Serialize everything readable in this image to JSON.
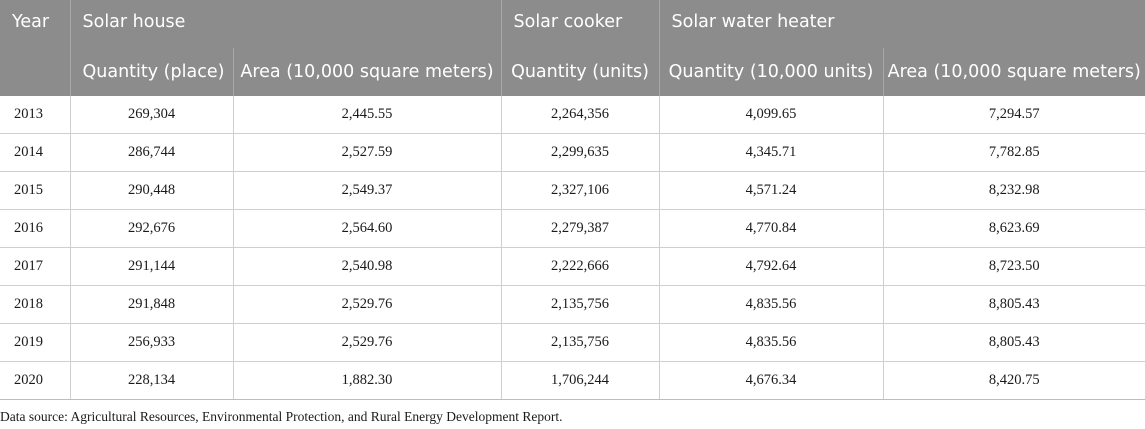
{
  "headers": {
    "year": "Year",
    "solar_house": "Solar house",
    "solar_cooker": "Solar cooker",
    "solar_water_heater": "Solar water heater",
    "house_quantity": "Quantity (place)",
    "house_area": "Area (10,000 square meters)",
    "cooker_quantity": "Quantity (units)",
    "heater_quantity": "Quantity (10,000 units)",
    "heater_area": "Area (10,000 square meters)"
  },
  "rows": [
    [
      "2013",
      "269,304",
      "2,445.55",
      "2,264,356",
      "4,099.65",
      "7,294.57"
    ],
    [
      "2014",
      "286,744",
      "2,527.59",
      "2,299,635",
      "4,345.71",
      "7,782.85"
    ],
    [
      "2015",
      "290,448",
      "2,549.37",
      "2,327,106",
      "4,571.24",
      "8,232.98"
    ],
    [
      "2016",
      "292,676",
      "2,564.60",
      "2,279,387",
      "4,770.84",
      "8,623.69"
    ],
    [
      "2017",
      "291,144",
      "2,540.98",
      "2,222,666",
      "4,792.64",
      "8,723.50"
    ],
    [
      "2018",
      "291,848",
      "2,529.76",
      "2,135,756",
      "4,835.56",
      "8,805.43"
    ],
    [
      "2019",
      "256,933",
      "2,529.76",
      "2,135,756",
      "4,835.56",
      "8,805.43"
    ],
    [
      "2020",
      "228,134",
      "1,882.30",
      "1,706,244",
      "4,676.34",
      "8,420.75"
    ]
  ],
  "footnote": "Data source: Agricultural Resources, Environmental Protection, and Rural Energy Development Report."
}
